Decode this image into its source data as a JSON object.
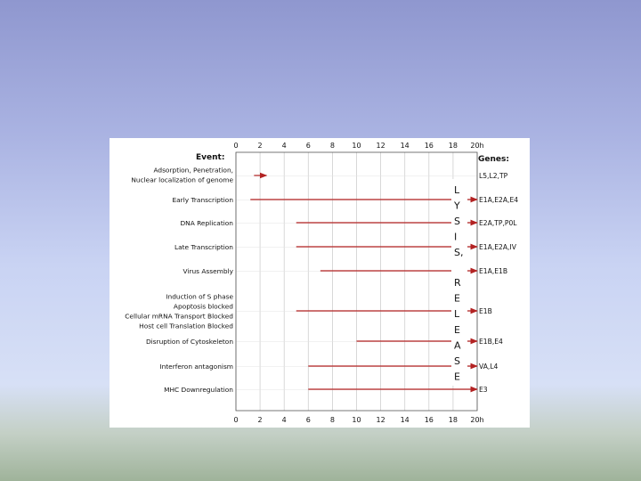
{
  "diagram": {
    "event_header": "Event:",
    "genes_header": "Genes:",
    "axis_ticks_top": [
      "0",
      "2",
      "4",
      "6",
      "8",
      "10",
      "12",
      "14",
      "16",
      "18",
      "20h"
    ],
    "axis_ticks_bottom": [
      "0",
      "2",
      "4",
      "6",
      "8",
      "10",
      "12",
      "14",
      "16",
      "18",
      "20h"
    ],
    "rows": [
      {
        "event": [
          "Adsorption, Penetration,",
          "Nuclear localization of genome"
        ],
        "genes": "L5,L2,TP",
        "start_h": 1.5,
        "end_h": 1.5,
        "arrow_color": "#b22222"
      },
      {
        "event": [
          "Early Transcription"
        ],
        "genes": "E1A,E2A,E4",
        "start_h": 1.2,
        "end_h": 20,
        "arrow_color": "#b22222"
      },
      {
        "event": [
          "DNA Replication"
        ],
        "genes": "E2A,TP,P0L",
        "start_h": 5.0,
        "end_h": 20,
        "arrow_color": "#b22222"
      },
      {
        "event": [
          "Late Transcription"
        ],
        "genes": "E1A,E2A,IV",
        "start_h": 5.0,
        "end_h": 20,
        "arrow_color": "#b22222"
      },
      {
        "event": [
          "Virus Assembly"
        ],
        "genes": "E1A,E1B",
        "start_h": 7.0,
        "end_h": 20,
        "arrow_color": "#b22222"
      },
      {
        "event": [
          "Induction of S phase",
          "Apoptosis blocked",
          "Cellular mRNA Transport Blocked",
          "Host cell Translation Blocked"
        ],
        "genes": "E1B",
        "start_h": 5.0,
        "end_h": 20,
        "arrow_color": "#b22222"
      },
      {
        "event": [
          "Disruption of Cytoskeleton"
        ],
        "genes": "E1B,E4",
        "start_h": 10.0,
        "end_h": 20,
        "arrow_color": "#b22222"
      },
      {
        "event": [
          "Interferon antagonism"
        ],
        "genes": "VA,L4",
        "start_h": 6.0,
        "end_h": 20,
        "arrow_color": "#b22222"
      },
      {
        "event": [
          "MHC Downregulation"
        ],
        "genes": "E3",
        "start_h": 6.0,
        "end_h": 20,
        "arrow_color": "#b22222"
      }
    ],
    "lysis_letters": [
      "L",
      "Y",
      "S",
      "I",
      "S,"
    ],
    "release_letters": [
      "R",
      "E",
      "L",
      "E",
      "A",
      "S",
      "E"
    ]
  }
}
